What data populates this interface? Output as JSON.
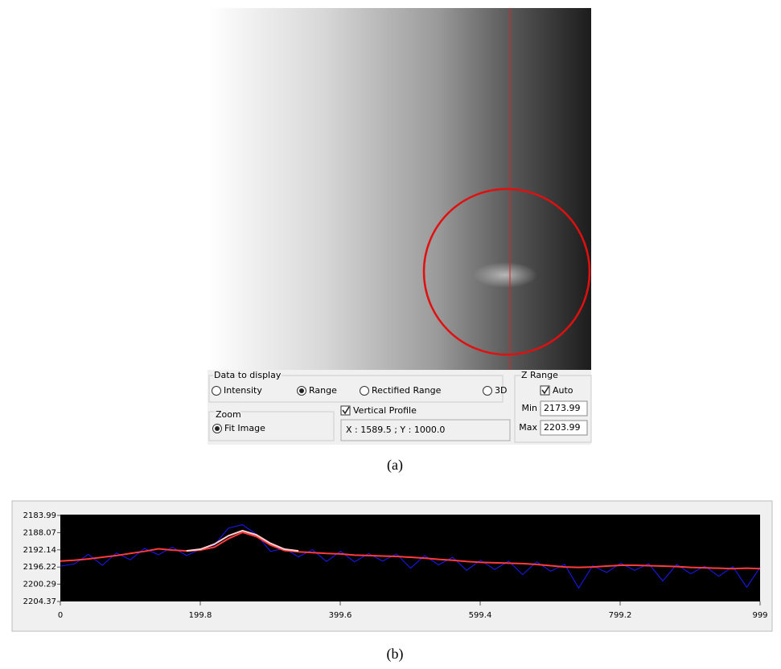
{
  "image_panel": {
    "data_to_display": {
      "title": "Data to display",
      "options": [
        "Intensity",
        "Range",
        "Rectified Range",
        "3D"
      ],
      "selected": 1
    },
    "zoom": {
      "title": "Zoom",
      "option": "Fit Image",
      "selected": true
    },
    "vertical_profile": {
      "label": "Vertical Profile",
      "checked": true,
      "coords": "X : 1589.5 ; Y : 1000.0"
    },
    "z_range": {
      "title": "Z Range",
      "auto_label": "Auto",
      "auto_checked": true,
      "min_label": "Min",
      "min": 2173.99,
      "max_label": "Max",
      "max": 2203.99
    },
    "caption": "(a)"
  },
  "chart_data": {
    "type": "line",
    "x": [
      0,
      20,
      40,
      60,
      80,
      100,
      120,
      140,
      160,
      180,
      200,
      220,
      240,
      260,
      280,
      300,
      320,
      340,
      360,
      380,
      400,
      420,
      440,
      460,
      480,
      500,
      520,
      540,
      560,
      580,
      600,
      620,
      640,
      660,
      680,
      700,
      720,
      740,
      760,
      780,
      800,
      820,
      840,
      860,
      880,
      900,
      920,
      940,
      960,
      980,
      999
    ],
    "series": [
      {
        "color": "#1a1aff",
        "values": [
          2196.0,
          2195.5,
          2193.2,
          2195.8,
          2192.9,
          2194.5,
          2191.8,
          2193.3,
          2191.5,
          2193.5,
          2192.0,
          2191.0,
          2187.0,
          2186.2,
          2188.5,
          2192.5,
          2191.8,
          2193.8,
          2192.1,
          2194.9,
          2192.5,
          2195.0,
          2193.0,
          2194.8,
          2193.1,
          2196.5,
          2193.5,
          2195.7,
          2193.9,
          2197.0,
          2194.6,
          2196.8,
          2194.8,
          2198.0,
          2195.0,
          2197.2,
          2195.6,
          2201.2,
          2195.9,
          2197.5,
          2195.3,
          2197.0,
          2195.4,
          2199.5,
          2195.6,
          2197.8,
          2196.0,
          2198.4,
          2196.1,
          2201.0,
          2196.3
        ]
      },
      {
        "color": "#ff3b3b",
        "values": [
          2194.8,
          2194.6,
          2194.3,
          2193.9,
          2193.5,
          2193.0,
          2192.5,
          2191.9,
          2192.2,
          2192.4,
          2192.2,
          2191.5,
          2189.5,
          2188.0,
          2189.0,
          2191.0,
          2192.3,
          2192.6,
          2192.8,
          2193.0,
          2193.1,
          2193.4,
          2193.5,
          2193.6,
          2193.7,
          2193.9,
          2194.1,
          2194.4,
          2194.6,
          2194.9,
          2195.1,
          2195.2,
          2195.3,
          2195.4,
          2195.6,
          2195.9,
          2196.2,
          2196.3,
          2196.2,
          2196.0,
          2195.8,
          2195.8,
          2195.9,
          2196.0,
          2196.1,
          2196.3,
          2196.4,
          2196.5,
          2196.6,
          2196.5,
          2196.6
        ]
      },
      {
        "color": "#ffd0d0",
        "values": [
          null,
          null,
          null,
          null,
          null,
          null,
          null,
          null,
          null,
          2192.4,
          2192.0,
          2190.8,
          2188.8,
          2187.6,
          2188.6,
          2190.6,
          2192.0,
          2192.4,
          null,
          null,
          null,
          null,
          null,
          null,
          null,
          null,
          null,
          null,
          null,
          null,
          null,
          null,
          null,
          null,
          null,
          null,
          null,
          null,
          null,
          null,
          null,
          null,
          null,
          null,
          null,
          null,
          null,
          null,
          null,
          null,
          null
        ]
      }
    ],
    "xlim": [
      0,
      999
    ],
    "xticks": [
      0,
      199.8,
      399.6,
      599.4,
      799.2,
      999
    ],
    "ylim": [
      2183.99,
      2204.37
    ],
    "yticks": [
      2183.99,
      2188.07,
      2192.14,
      2196.22,
      2200.29,
      2204.37
    ],
    "y_inverted": true,
    "caption": "(b)"
  }
}
